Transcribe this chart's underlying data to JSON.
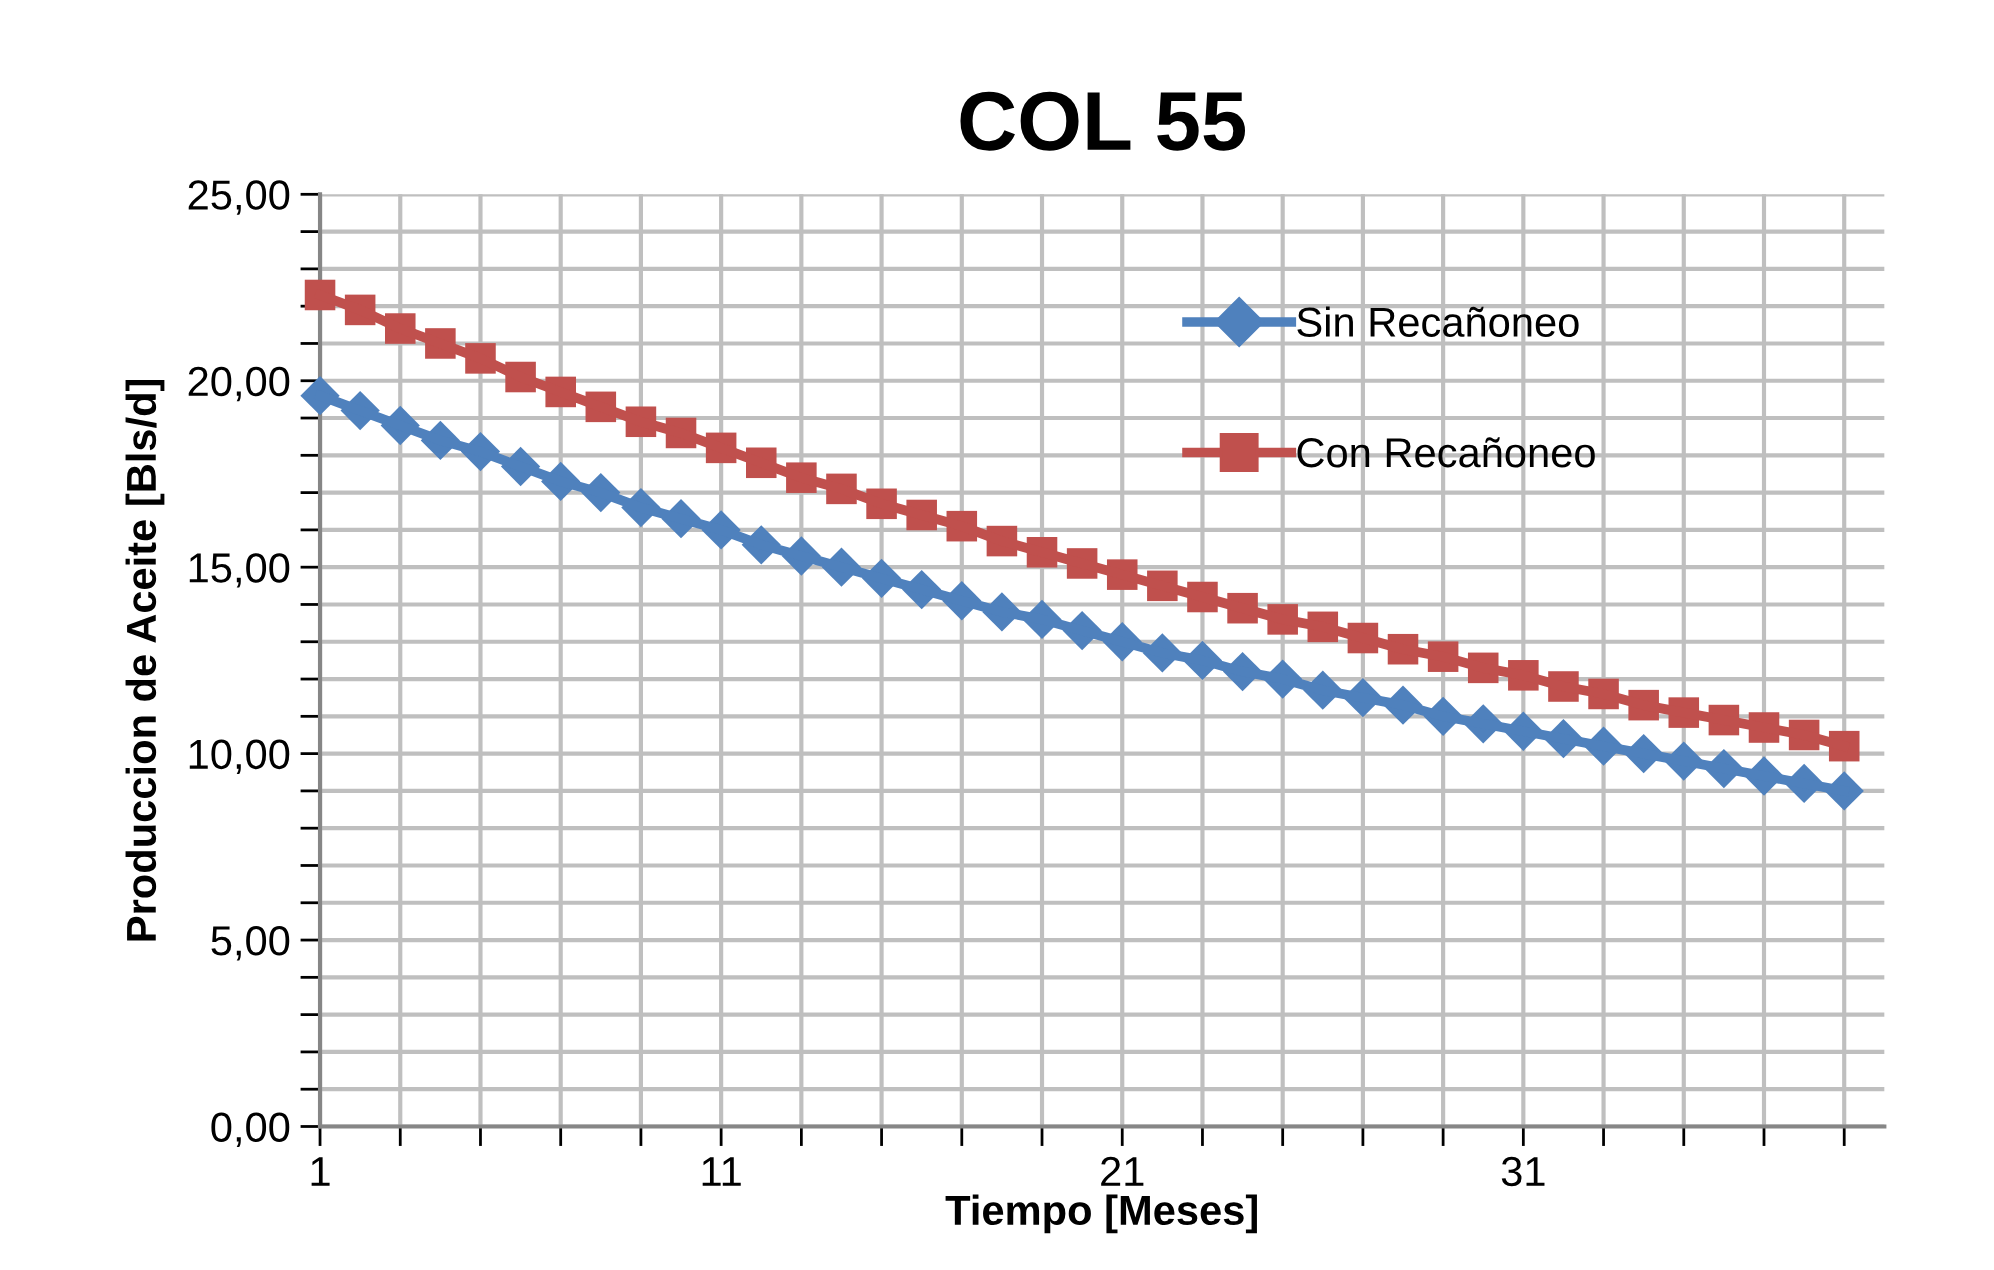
{
  "chart_data": {
    "type": "line",
    "title": "COL 55",
    "xlabel": "Tiempo [Meses]",
    "ylabel": "Produccion de Aceite [Bls/d]",
    "x": [
      1,
      2,
      3,
      4,
      5,
      6,
      7,
      8,
      9,
      10,
      11,
      12,
      13,
      14,
      15,
      16,
      17,
      18,
      19,
      20,
      21,
      22,
      23,
      24,
      25,
      26,
      27,
      28,
      29,
      30,
      31,
      32,
      33,
      34,
      35,
      36,
      37,
      38,
      39
    ],
    "series": [
      {
        "name": "Sin Recañoneo",
        "color": "#4f81bd",
        "marker": "diamond",
        "values": [
          19.6,
          19.2,
          18.8,
          18.4,
          18.1,
          17.7,
          17.3,
          17.0,
          16.6,
          16.3,
          16.0,
          15.6,
          15.3,
          15.0,
          14.7,
          14.4,
          14.1,
          13.8,
          13.6,
          13.3,
          13.0,
          12.7,
          12.5,
          12.2,
          12.0,
          11.7,
          11.5,
          11.3,
          11.0,
          10.8,
          10.6,
          10.4,
          10.2,
          10.0,
          9.8,
          9.6,
          9.4,
          9.2,
          9.0
        ]
      },
      {
        "name": "Con Recañoneo",
        "color": "#c0504d",
        "marker": "square",
        "values": [
          22.3,
          21.9,
          21.4,
          21.0,
          20.6,
          20.1,
          19.7,
          19.3,
          18.9,
          18.6,
          18.2,
          17.8,
          17.4,
          17.1,
          16.7,
          16.4,
          16.1,
          15.7,
          15.4,
          15.1,
          14.8,
          14.5,
          14.2,
          13.9,
          13.6,
          13.4,
          13.1,
          12.8,
          12.6,
          12.3,
          12.1,
          11.8,
          11.6,
          11.3,
          11.1,
          10.9,
          10.7,
          10.5,
          10.2
        ]
      }
    ],
    "xlim": [
      1,
      40
    ],
    "xticks": [
      1,
      {
        "value": 3,
        "label": null
      },
      {
        "value": 5,
        "label": null
      },
      {
        "value": 7,
        "label": null
      },
      {
        "value": 9,
        "label": null
      },
      11,
      {
        "value": 13,
        "label": null
      },
      {
        "value": 15,
        "label": null
      },
      {
        "value": 17,
        "label": null
      },
      {
        "value": 19,
        "label": null
      },
      21,
      {
        "value": 23,
        "label": null
      },
      {
        "value": 25,
        "label": null
      },
      {
        "value": 27,
        "label": null
      },
      {
        "value": 29,
        "label": null
      },
      31,
      {
        "value": 33,
        "label": null
      },
      {
        "value": 35,
        "label": null
      },
      {
        "value": 37,
        "label": null
      },
      {
        "value": 39,
        "label": null
      }
    ],
    "ylim": [
      0,
      25
    ],
    "yticks": [
      {
        "value": 0,
        "label": "0,00"
      },
      {
        "value": 1,
        "label": null
      },
      {
        "value": 2,
        "label": null
      },
      {
        "value": 3,
        "label": null
      },
      {
        "value": 4,
        "label": null
      },
      {
        "value": 5,
        "label": "5,00"
      },
      {
        "value": 6,
        "label": null
      },
      {
        "value": 7,
        "label": null
      },
      {
        "value": 8,
        "label": null
      },
      {
        "value": 9,
        "label": null
      },
      {
        "value": 10,
        "label": "10,00"
      },
      {
        "value": 11,
        "label": null
      },
      {
        "value": 12,
        "label": null
      },
      {
        "value": 13,
        "label": null
      },
      {
        "value": 14,
        "label": null
      },
      {
        "value": 15,
        "label": "15,00"
      },
      {
        "value": 16,
        "label": null
      },
      {
        "value": 17,
        "label": null
      },
      {
        "value": 18,
        "label": null
      },
      {
        "value": 19,
        "label": null
      },
      {
        "value": 20,
        "label": "20,00"
      },
      {
        "value": 21,
        "label": null
      },
      {
        "value": 22,
        "label": null
      },
      {
        "value": 23,
        "label": null
      },
      {
        "value": 24,
        "label": null
      },
      {
        "value": 25,
        "label": "25,00"
      }
    ],
    "grid": true,
    "legend": "top right",
    "line_style": "solid"
  }
}
